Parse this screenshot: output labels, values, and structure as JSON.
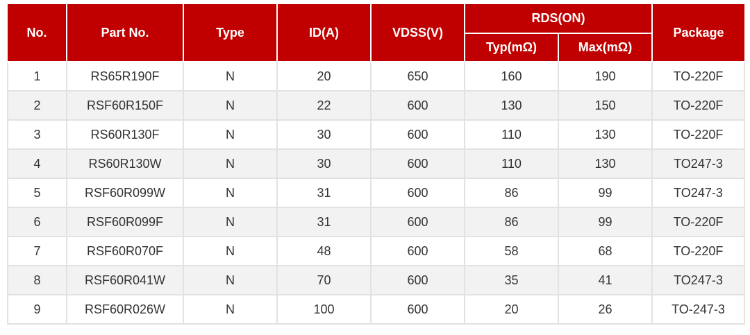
{
  "colors": {
    "header_bg": "#c00000",
    "header_text": "#ffffff",
    "alt_row": "#f2f2f2"
  },
  "headers": {
    "no": "No.",
    "part": "Part No.",
    "type": "Type",
    "id": "ID(A)",
    "vdss": "VDSS(V)",
    "rds": "RDS(ON)",
    "typ": "Typ(mΩ)",
    "max": "Max(mΩ)",
    "package": "Package"
  },
  "rows": [
    {
      "no": "1",
      "part": "RS65R190F",
      "type": "N",
      "id": "20",
      "vdss": "650",
      "typ": "160",
      "max": "190",
      "package": "TO-220F"
    },
    {
      "no": "2",
      "part": "RSF60R150F",
      "type": "N",
      "id": "22",
      "vdss": "600",
      "typ": "130",
      "max": "150",
      "package": "TO-220F"
    },
    {
      "no": "3",
      "part": "RS60R130F",
      "type": "N",
      "id": "30",
      "vdss": "600",
      "typ": "110",
      "max": "130",
      "package": "TO-220F"
    },
    {
      "no": "4",
      "part": "RS60R130W",
      "type": "N",
      "id": "30",
      "vdss": "600",
      "typ": "110",
      "max": "130",
      "package": "TO247-3"
    },
    {
      "no": "5",
      "part": "RSF60R099W",
      "type": "N",
      "id": "31",
      "vdss": "600",
      "typ": "86",
      "max": "99",
      "package": "TO247-3"
    },
    {
      "no": "6",
      "part": "RSF60R099F",
      "type": "N",
      "id": "31",
      "vdss": "600",
      "typ": "86",
      "max": "99",
      "package": "TO-220F"
    },
    {
      "no": "7",
      "part": "RSF60R070F",
      "type": "N",
      "id": "48",
      "vdss": "600",
      "typ": "58",
      "max": "68",
      "package": "TO-220F"
    },
    {
      "no": "8",
      "part": "RSF60R041W",
      "type": "N",
      "id": "70",
      "vdss": "600",
      "typ": "35",
      "max": "41",
      "package": "TO247-3"
    },
    {
      "no": "9",
      "part": "RSF60R026W",
      "type": "N",
      "id": "100",
      "vdss": "600",
      "typ": "20",
      "max": "26",
      "package": "TO-247-3"
    }
  ]
}
